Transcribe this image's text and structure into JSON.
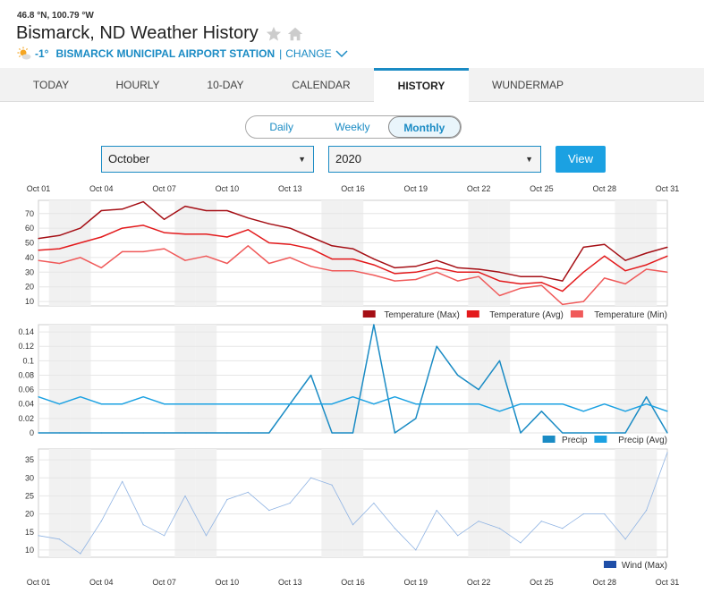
{
  "header": {
    "coords": "46.8 °N, 100.79 °W",
    "title": "Bismarck, ND Weather History",
    "temp": "-1°",
    "station": "BISMARCK MUNICIPAL AIRPORT STATION",
    "separator": "|",
    "change": "CHANGE"
  },
  "tabs": [
    "TODAY",
    "HOURLY",
    "10-DAY",
    "CALENDAR",
    "HISTORY",
    "WUNDERMAP"
  ],
  "active_tab": "HISTORY",
  "period": {
    "options": [
      "Daily",
      "Weekly",
      "Monthly"
    ],
    "selected": "Monthly"
  },
  "month_select": "October",
  "year_select": "2020",
  "view_button": "View",
  "colors": {
    "accent": "#1a8bc4",
    "tmax": "#a50f15",
    "tavg": "#e31a1c",
    "tmin": "#f05a5a",
    "precip": "#1a8bc4",
    "precip_avg": "#1ba1e2",
    "wind": "#8fb3e3",
    "wind_legend": "#1f4fa8"
  },
  "chart_data": [
    {
      "type": "line",
      "x": [
        "Oct 01",
        "Oct 02",
        "Oct 03",
        "Oct 04",
        "Oct 05",
        "Oct 06",
        "Oct 07",
        "Oct 08",
        "Oct 09",
        "Oct 10",
        "Oct 11",
        "Oct 12",
        "Oct 13",
        "Oct 14",
        "Oct 15",
        "Oct 16",
        "Oct 17",
        "Oct 18",
        "Oct 19",
        "Oct 20",
        "Oct 21",
        "Oct 22",
        "Oct 23",
        "Oct 24",
        "Oct 25",
        "Oct 26",
        "Oct 27",
        "Oct 28",
        "Oct 29",
        "Oct 30",
        "Oct 31"
      ],
      "xticks": [
        "Oct 01",
        "Oct 04",
        "Oct 07",
        "Oct 10",
        "Oct 13",
        "Oct 16",
        "Oct 19",
        "Oct 22",
        "Oct 25",
        "Oct 28",
        "Oct 31"
      ],
      "yticks": [
        10,
        20,
        30,
        40,
        50,
        60,
        70
      ],
      "ylim": [
        7,
        79
      ],
      "series": [
        {
          "name": "Temperature (Max)",
          "values": [
            53,
            55,
            60,
            72,
            73,
            78,
            66,
            75,
            72,
            72,
            67,
            63,
            60,
            54,
            48,
            46,
            39,
            33,
            34,
            38,
            33,
            32,
            30,
            27,
            27,
            24,
            47,
            49,
            38,
            43,
            47
          ]
        },
        {
          "name": "Temperature (Avg)",
          "values": [
            45,
            46,
            50,
            54,
            60,
            62,
            57,
            56,
            56,
            54,
            59,
            50,
            49,
            46,
            39,
            39,
            35,
            29,
            30,
            33,
            30,
            30,
            24,
            22,
            23,
            17,
            30,
            41,
            31,
            35,
            41
          ]
        },
        {
          "name": "Temperature (Min)",
          "values": [
            38,
            36,
            40,
            33,
            44,
            44,
            46,
            38,
            41,
            36,
            48,
            36,
            40,
            34,
            31,
            31,
            28,
            24,
            25,
            30,
            24,
            27,
            14,
            19,
            21,
            8,
            10,
            26,
            22,
            32,
            30
          ]
        }
      ]
    },
    {
      "type": "line",
      "x": [
        "Oct 01",
        "Oct 02",
        "Oct 03",
        "Oct 04",
        "Oct 05",
        "Oct 06",
        "Oct 07",
        "Oct 08",
        "Oct 09",
        "Oct 10",
        "Oct 11",
        "Oct 12",
        "Oct 13",
        "Oct 14",
        "Oct 15",
        "Oct 16",
        "Oct 17",
        "Oct 18",
        "Oct 19",
        "Oct 20",
        "Oct 21",
        "Oct 22",
        "Oct 23",
        "Oct 24",
        "Oct 25",
        "Oct 26",
        "Oct 27",
        "Oct 28",
        "Oct 29",
        "Oct 30",
        "Oct 31"
      ],
      "yticks": [
        0,
        0.02,
        0.04,
        0.06,
        0.08,
        0.1,
        0.12,
        0.14
      ],
      "ylim": [
        0,
        0.15
      ],
      "series": [
        {
          "name": "Precip",
          "values": [
            0,
            0,
            0,
            0,
            0,
            0,
            0,
            0,
            0,
            0,
            0,
            0,
            0.04,
            0.08,
            0,
            0,
            0.15,
            0,
            0.02,
            0.12,
            0.08,
            0.06,
            0.1,
            0,
            0.03,
            0,
            0,
            0,
            0,
            0.05,
            0
          ]
        },
        {
          "name": "Precip (Avg)",
          "values": [
            0.05,
            0.04,
            0.05,
            0.04,
            0.04,
            0.05,
            0.04,
            0.04,
            0.04,
            0.04,
            0.04,
            0.04,
            0.04,
            0.04,
            0.04,
            0.05,
            0.04,
            0.05,
            0.04,
            0.04,
            0.04,
            0.04,
            0.03,
            0.04,
            0.04,
            0.04,
            0.03,
            0.04,
            0.03,
            0.04,
            0.03
          ]
        }
      ]
    },
    {
      "type": "line",
      "x": [
        "Oct 01",
        "Oct 02",
        "Oct 03",
        "Oct 04",
        "Oct 05",
        "Oct 06",
        "Oct 07",
        "Oct 08",
        "Oct 09",
        "Oct 10",
        "Oct 11",
        "Oct 12",
        "Oct 13",
        "Oct 14",
        "Oct 15",
        "Oct 16",
        "Oct 17",
        "Oct 18",
        "Oct 19",
        "Oct 20",
        "Oct 21",
        "Oct 22",
        "Oct 23",
        "Oct 24",
        "Oct 25",
        "Oct 26",
        "Oct 27",
        "Oct 28",
        "Oct 29",
        "Oct 30",
        "Oct 31"
      ],
      "xticks": [
        "Oct 01",
        "Oct 04",
        "Oct 07",
        "Oct 10",
        "Oct 13",
        "Oct 16",
        "Oct 19",
        "Oct 22",
        "Oct 25",
        "Oct 28",
        "Oct 31"
      ],
      "yticks": [
        10,
        15,
        20,
        25,
        30,
        35
      ],
      "ylim": [
        8,
        38
      ],
      "series": [
        {
          "name": "Wind (Max)",
          "values": [
            14,
            13,
            9,
            18,
            29,
            17,
            14,
            25,
            14,
            24,
            26,
            21,
            23,
            30,
            28,
            17,
            23,
            16,
            10,
            21,
            14,
            18,
            16,
            12,
            18,
            16,
            20,
            20,
            13,
            21,
            37
          ]
        }
      ]
    }
  ]
}
